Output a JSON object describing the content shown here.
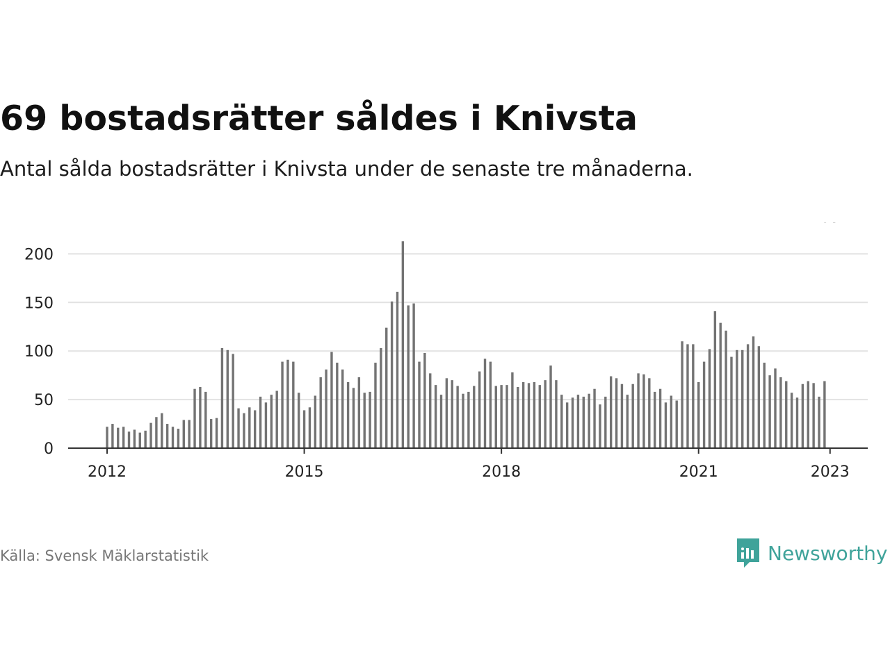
{
  "header": {
    "title": "69 bostadsrätter såldes i Knivsta",
    "subtitle": "Antal sålda bostadsrätter i Knivsta under de senaste tre månaderna."
  },
  "footer": {
    "source": "Källa: Svensk Mäklarstatistik",
    "brand": "Newsworthy"
  },
  "colors": {
    "bar": "#737373",
    "highlight": "#23a198",
    "grid": "#e2e2e2",
    "axis": "#333333",
    "brand": "#3fa39a"
  },
  "chart_data": {
    "type": "bar",
    "x_start": "2012-01",
    "x_step": "month",
    "xticks": [
      "2012",
      "2015",
      "2018",
      "2021",
      "2023"
    ],
    "yticks": [
      0,
      50,
      100,
      150,
      200
    ],
    "ylim": [
      0,
      215
    ],
    "grid": true,
    "values": [
      22,
      25,
      21,
      22,
      17,
      19,
      16,
      18,
      26,
      32,
      36,
      25,
      22,
      20,
      29,
      29,
      61,
      63,
      58,
      30,
      31,
      103,
      101,
      97,
      41,
      36,
      42,
      39,
      53,
      47,
      55,
      59,
      89,
      91,
      89,
      57,
      39,
      42,
      54,
      73,
      81,
      99,
      88,
      81,
      68,
      62,
      73,
      57,
      58,
      88,
      103,
      124,
      151,
      161,
      213,
      147,
      149,
      89,
      98,
      77,
      65,
      55,
      72,
      70,
      64,
      56,
      58,
      64,
      79,
      92,
      89,
      64,
      65,
      65,
      78,
      63,
      68,
      67,
      68,
      65,
      70,
      85,
      70,
      55,
      47,
      52,
      55,
      53,
      56,
      61,
      45,
      53,
      74,
      72,
      66,
      55,
      66,
      77,
      76,
      72,
      58,
      61,
      47,
      54,
      49,
      110,
      107,
      107,
      68,
      89,
      102,
      141,
      129,
      121,
      94,
      101,
      101,
      107,
      115,
      105,
      88,
      75,
      82,
      73,
      69,
      57,
      52,
      66,
      69,
      67,
      53,
      69
    ],
    "highlight_index": 132,
    "highlight_label": "69"
  }
}
